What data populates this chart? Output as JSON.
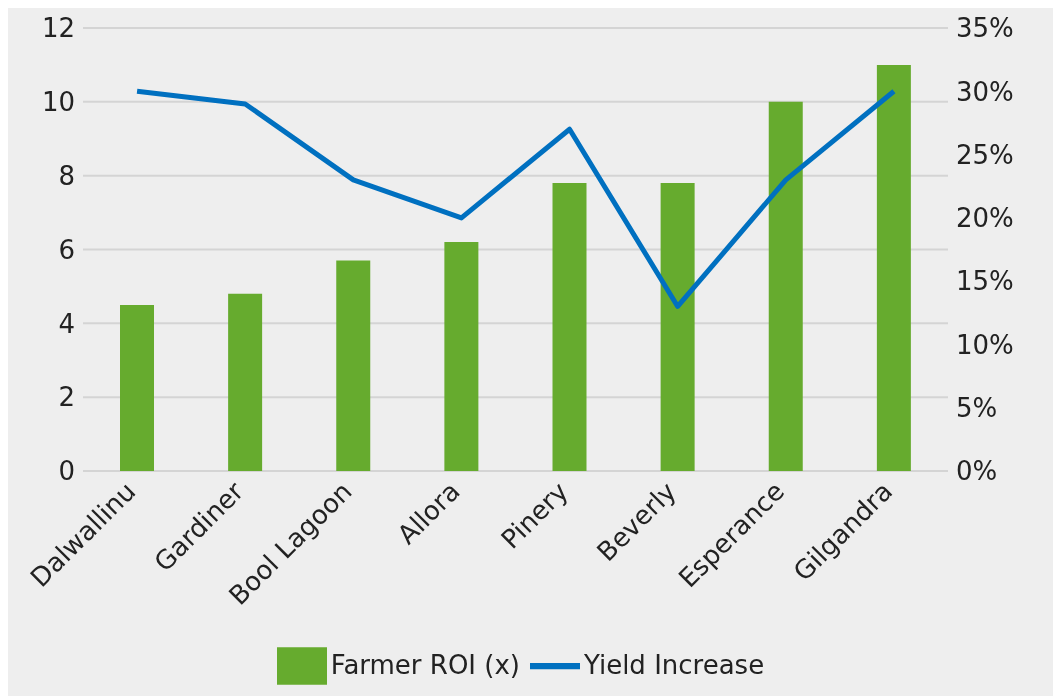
{
  "chart_data": {
    "type": "bar",
    "categories": [
      "Dalwallinu",
      "Gardiner",
      "Bool Lagoon",
      "Allora",
      "Pinery",
      "Beverly",
      "Esperance",
      "Gilgandra"
    ],
    "series": [
      {
        "name": "Farmer ROI (x)",
        "color": "#66ab2e",
        "values": [
          4.5,
          4.8,
          5.7,
          6.2,
          7.8,
          7.8,
          10.0,
          11.0
        ]
      },
      {
        "name": "Yield Increase",
        "type": "line",
        "axis": "y2",
        "color": "#0070c0",
        "values": [
          30,
          29,
          23,
          20,
          27,
          13,
          23,
          30
        ]
      }
    ],
    "ylim": [
      0,
      12
    ],
    "yticks": [
      0,
      2,
      4,
      6,
      8,
      10,
      12
    ],
    "y2lim": [
      0,
      35
    ],
    "y2ticks": [
      {
        "value": 0,
        "label": "0%"
      },
      {
        "value": 5,
        "label": "5%"
      },
      {
        "value": 10,
        "label": "10%"
      },
      {
        "value": 15,
        "label": "15%"
      },
      {
        "value": 20,
        "label": "20%"
      },
      {
        "value": 25,
        "label": "25%"
      },
      {
        "value": 30,
        "label": "30%"
      },
      {
        "value": 35,
        "label": "35%"
      }
    ],
    "grid": "y",
    "legend": "bottom"
  }
}
